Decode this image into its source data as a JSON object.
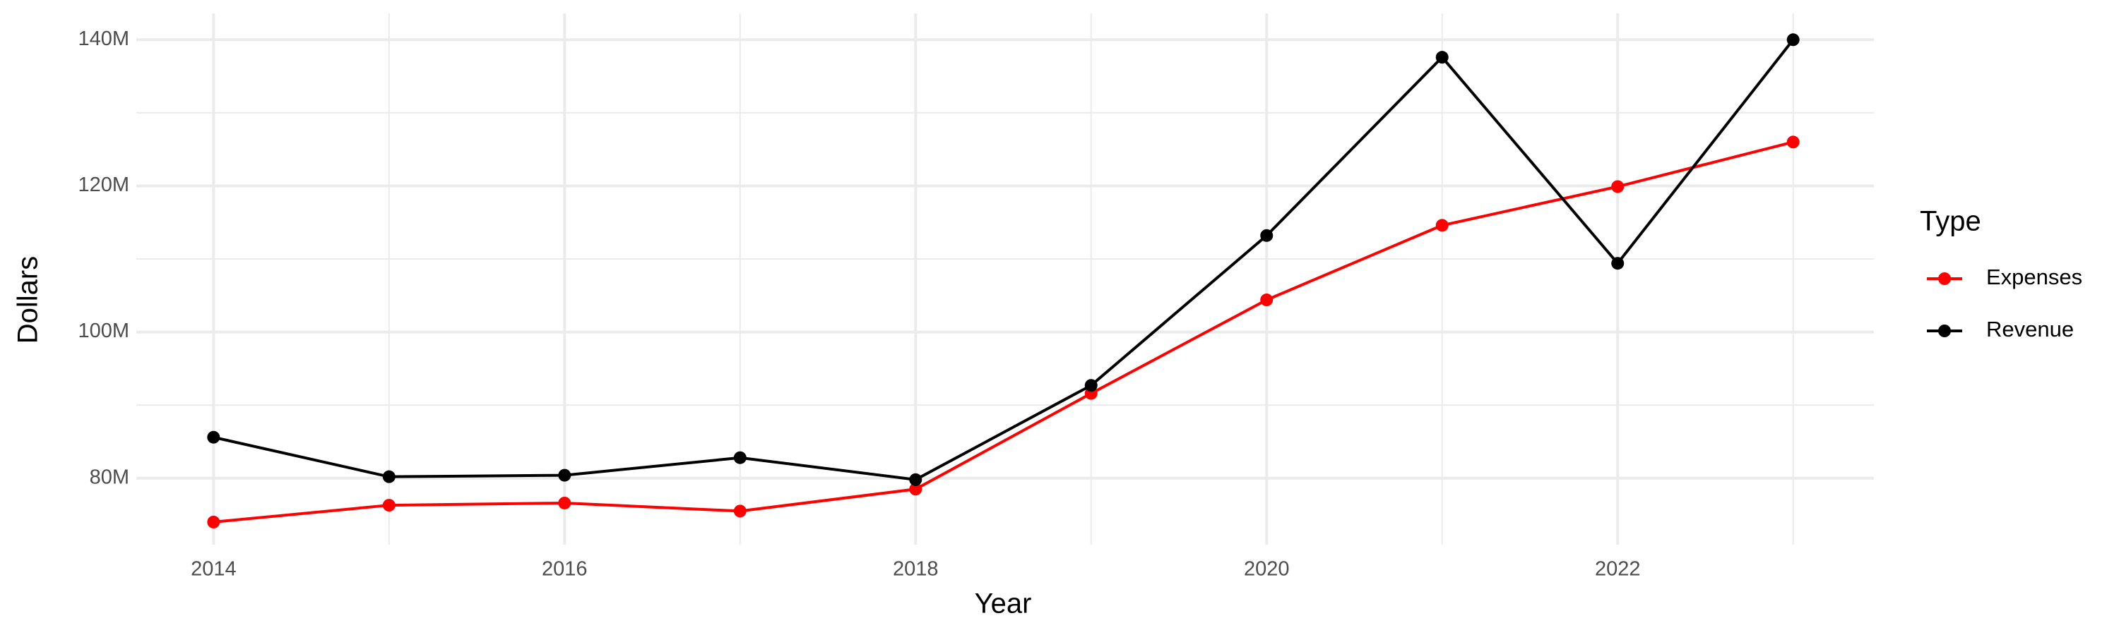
{
  "chart_data": {
    "type": "line",
    "x": [
      2014,
      2015,
      2016,
      2017,
      2018,
      2019,
      2020,
      2021,
      2022,
      2023
    ],
    "series": [
      {
        "name": "Expenses",
        "color": "#ff0000",
        "values": [
          74.0,
          76.3,
          76.6,
          75.5,
          78.5,
          91.6,
          104.4,
          114.6,
          119.9,
          126.0
        ]
      },
      {
        "name": "Revenue",
        "color": "#000000",
        "values": [
          85.6,
          80.2,
          80.4,
          82.8,
          79.8,
          92.7,
          113.2,
          137.6,
          109.4,
          140.0
        ]
      }
    ],
    "xlabel": "Year",
    "ylabel": "Dollars",
    "legend_title": "Type",
    "xlim": [
      2013.56,
      2023.46
    ],
    "xticks": [
      2014,
      2016,
      2018,
      2020,
      2022
    ],
    "ylim": [
      70.9,
      143.6
    ],
    "yticks": [
      {
        "value": 80,
        "label": "80M"
      },
      {
        "value": 100,
        "label": "100M"
      },
      {
        "value": 120,
        "label": "120M"
      },
      {
        "value": 140,
        "label": "140M"
      }
    ],
    "grid": true,
    "legend": "right"
  }
}
